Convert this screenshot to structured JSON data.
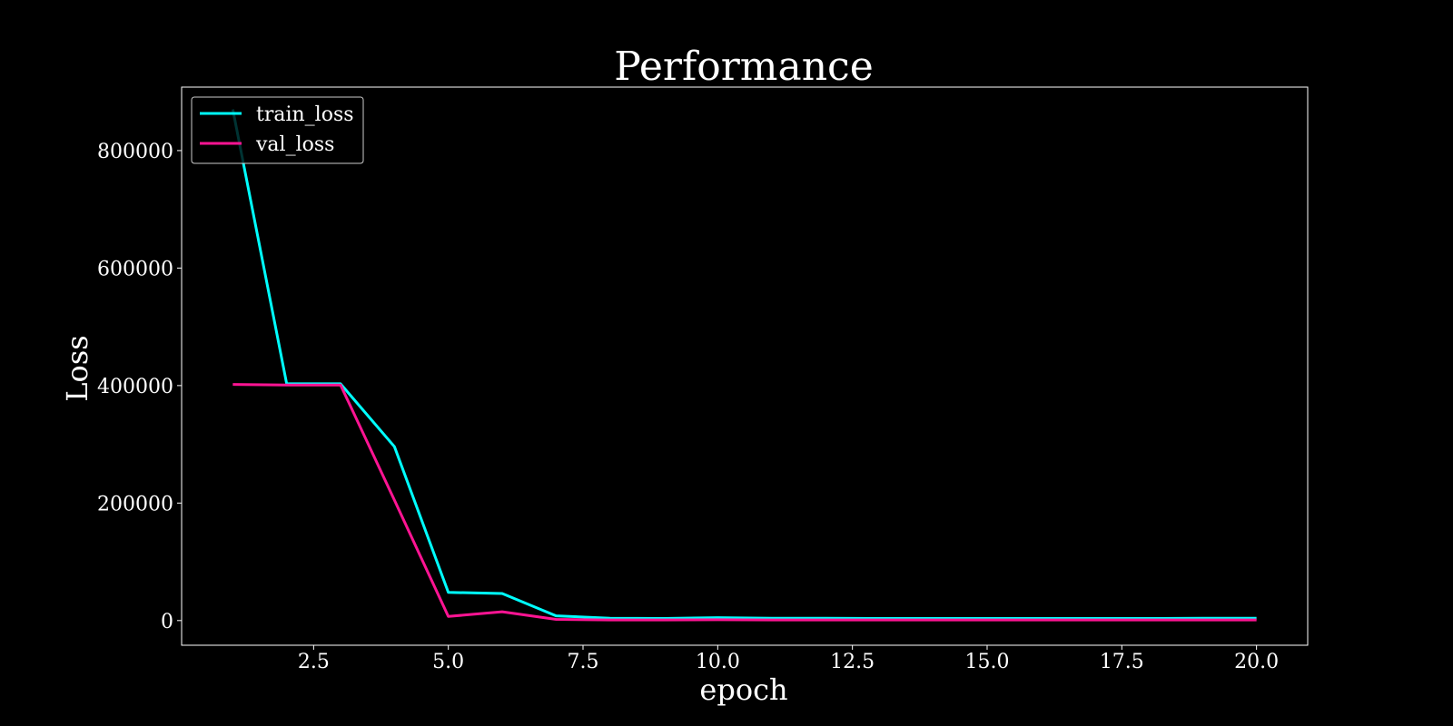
{
  "chart_data": {
    "type": "line",
    "title": "Performance",
    "xlabel": "epoch",
    "ylabel": "Loss",
    "xlim": [
      0.05,
      20.95
    ],
    "ylim": [
      -42000,
      908000
    ],
    "xticks": [
      2.5,
      5.0,
      7.5,
      10.0,
      12.5,
      15.0,
      17.5,
      20.0
    ],
    "xtick_labels": [
      "2.5",
      "5.0",
      "7.5",
      "10.0",
      "12.5",
      "15.0",
      "17.5",
      "20.0"
    ],
    "yticks": [
      0,
      200000,
      400000,
      600000,
      800000
    ],
    "ytick_labels": [
      "0",
      "200000",
      "400000",
      "600000",
      "800000"
    ],
    "legend_position": "top-left",
    "background_color": "#000000",
    "grid": false,
    "x": [
      1,
      2,
      3,
      4,
      5,
      6,
      7,
      8,
      9,
      10,
      11,
      12,
      13,
      14,
      15,
      16,
      17,
      18,
      19,
      20
    ],
    "series": [
      {
        "name": "train_loss",
        "color": "#00ffff",
        "values": [
          870000,
          403000,
          403000,
          296000,
          48000,
          46000,
          8000,
          4000,
          3500,
          5000,
          4000,
          4000,
          3500,
          3500,
          3500,
          3500,
          3500,
          3500,
          4000,
          4000
        ]
      },
      {
        "name": "val_loss",
        "color": "#ff1493",
        "values": [
          402000,
          401000,
          401000,
          205000,
          7000,
          15000,
          2000,
          1000,
          1000,
          1500,
          1000,
          1000,
          1000,
          1000,
          1000,
          1000,
          1000,
          1000,
          1000,
          1000
        ]
      }
    ]
  }
}
